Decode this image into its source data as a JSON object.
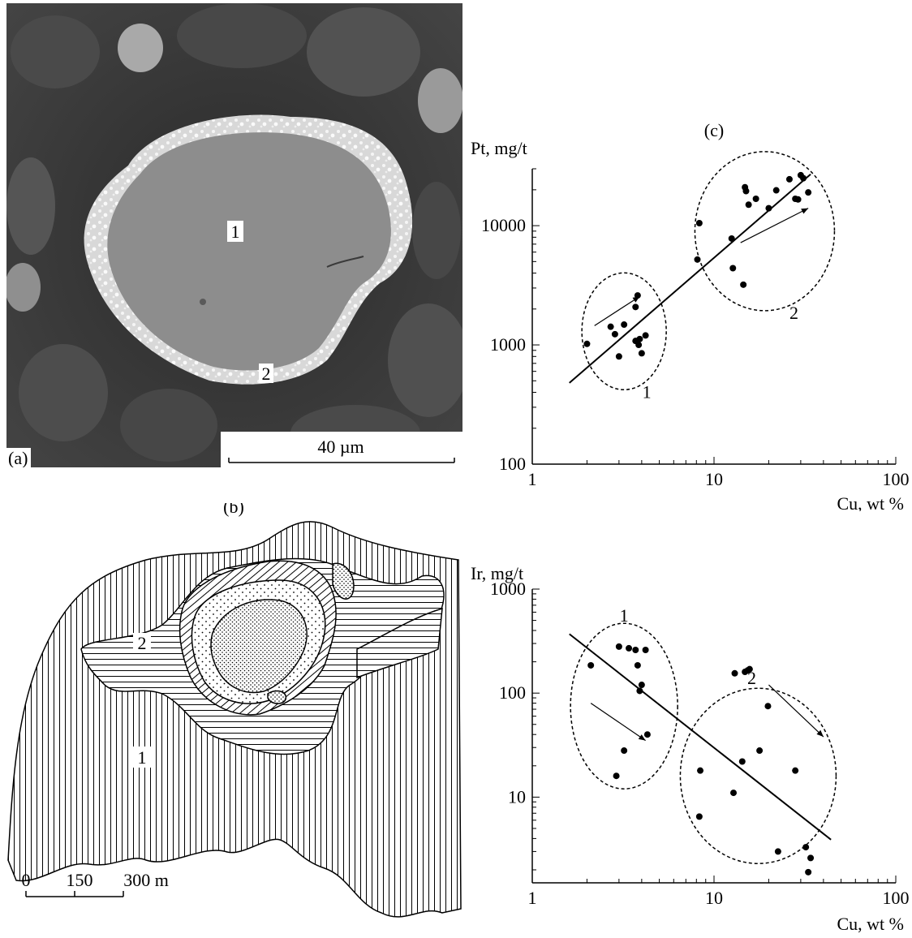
{
  "panel_a": {
    "panel_label": "(a)",
    "zone_1_label": "1",
    "zone_2_label": "2",
    "scale_bar_label": "40 µm"
  },
  "panel_b": {
    "panel_label": "(b)",
    "zone_1_label": "1",
    "zone_2_label": "2",
    "scale_ticks": [
      "0",
      "150",
      "300 m"
    ]
  },
  "panel_c_label": "(c)",
  "chart_data": [
    {
      "type": "scatter",
      "ylabel": "Pt, mg/t",
      "xlabel": "Cu, wt %",
      "x_scale": "log",
      "y_scale": "log",
      "xlim": [
        1,
        100
      ],
      "ylim": [
        100,
        30000
      ],
      "x_ticks": [
        "1",
        "10",
        "100"
      ],
      "y_ticks": [
        "100",
        "1000",
        "10000"
      ],
      "group_labels": [
        "1",
        "2"
      ],
      "points": [
        [
          2.0,
          1020
        ],
        [
          2.7,
          1420
        ],
        [
          2.85,
          1230
        ],
        [
          3.0,
          800
        ],
        [
          3.2,
          1480
        ],
        [
          3.7,
          2080
        ],
        [
          3.8,
          2600
        ],
        [
          3.7,
          1080
        ],
        [
          3.85,
          1000
        ],
        [
          4.0,
          850
        ],
        [
          4.2,
          1200
        ],
        [
          3.9,
          1120
        ],
        [
          8.1,
          5200
        ],
        [
          8.3,
          10500
        ],
        [
          12.5,
          7800
        ],
        [
          12.7,
          4400
        ],
        [
          14.5,
          3200
        ],
        [
          14.8,
          21000
        ],
        [
          15.0,
          19500
        ],
        [
          15.5,
          15000
        ],
        [
          17.0,
          16800
        ],
        [
          20.0,
          14000
        ],
        [
          22.0,
          19800
        ],
        [
          26.0,
          24500
        ],
        [
          28.0,
          16800
        ],
        [
          29.0,
          16600
        ],
        [
          30.0,
          26500
        ],
        [
          31.0,
          25000
        ],
        [
          33.0,
          19000
        ]
      ],
      "trend_line": [
        [
          1.6,
          480
        ],
        [
          34.0,
          27000
        ]
      ]
    },
    {
      "type": "scatter",
      "ylabel": "Ir, mg/t",
      "xlabel": "Cu, wt %",
      "x_scale": "log",
      "y_scale": "log",
      "xlim": [
        1,
        100
      ],
      "ylim": [
        1.5,
        1000
      ],
      "x_ticks": [
        "1",
        "10",
        "100"
      ],
      "y_ticks": [
        "10",
        "100",
        "1000"
      ],
      "group_labels": [
        "1",
        "2"
      ],
      "points": [
        [
          2.1,
          185
        ],
        [
          2.9,
          16
        ],
        [
          3.0,
          280
        ],
        [
          3.2,
          28
        ],
        [
          3.4,
          270
        ],
        [
          3.7,
          260
        ],
        [
          3.8,
          185
        ],
        [
          3.9,
          105
        ],
        [
          4.0,
          120
        ],
        [
          4.2,
          260
        ],
        [
          4.3,
          40
        ],
        [
          8.3,
          6.5
        ],
        [
          8.4,
          18
        ],
        [
          12.8,
          11
        ],
        [
          13.0,
          155
        ],
        [
          14.3,
          22
        ],
        [
          14.8,
          160
        ],
        [
          15.3,
          165
        ],
        [
          15.7,
          170
        ],
        [
          17.8,
          28
        ],
        [
          19.8,
          75
        ],
        [
          22.5,
          3.0
        ],
        [
          28.0,
          18
        ],
        [
          32.0,
          3.3
        ],
        [
          33.0,
          1.9
        ],
        [
          34.0,
          2.6
        ]
      ],
      "trend_line": [
        [
          1.6,
          370
        ],
        [
          44.0,
          3.9
        ]
      ]
    }
  ]
}
